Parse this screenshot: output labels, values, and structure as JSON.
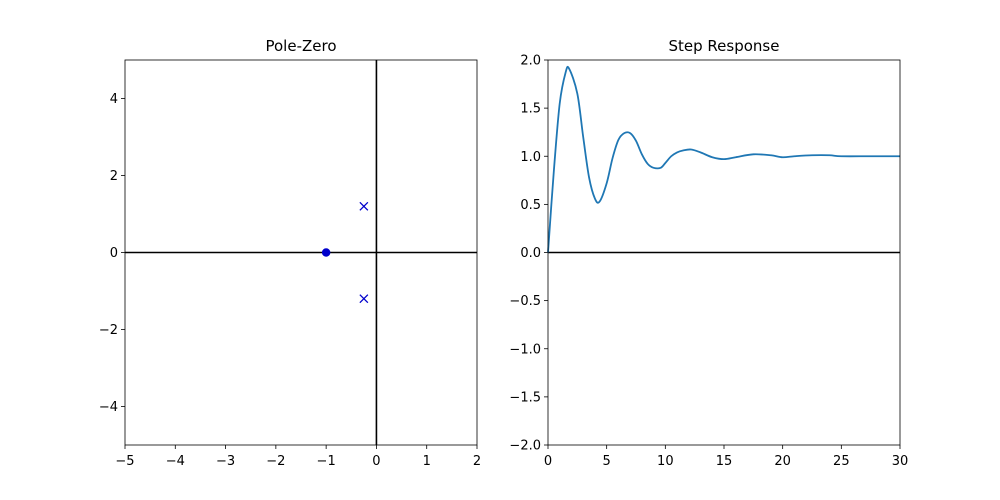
{
  "chart_data": [
    {
      "type": "scatter",
      "title": "Pole-Zero",
      "xlabel": "",
      "ylabel": "",
      "xlim": [
        -5,
        2
      ],
      "ylim": [
        -5,
        5
      ],
      "xticks": [
        -5,
        -4,
        -3,
        -2,
        -1,
        0,
        1,
        2
      ],
      "xtick_labels": [
        "−5",
        "−4",
        "−3",
        "−2",
        "−1",
        "0",
        "1",
        "2"
      ],
      "yticks": [
        -4,
        -2,
        0,
        2,
        4
      ],
      "ytick_labels": [
        "−4",
        "−2",
        "0",
        "2",
        "4"
      ],
      "grid": false,
      "axis_lines": {
        "x": 0,
        "y": 0
      },
      "poles": [
        {
          "re": -0.25,
          "im": 1.2
        },
        {
          "re": -0.25,
          "im": -1.2
        }
      ],
      "zeros": [
        {
          "re": -1.0,
          "im": 0.0
        }
      ],
      "colors": {
        "marker": "#0000cc",
        "axis": "#000000"
      }
    },
    {
      "type": "line",
      "title": "Step Response",
      "xlabel": "",
      "ylabel": "",
      "xlim": [
        0,
        30
      ],
      "ylim": [
        -2,
        2
      ],
      "xticks": [
        0,
        5,
        10,
        15,
        20,
        25,
        30
      ],
      "xtick_labels": [
        "0",
        "5",
        "10",
        "15",
        "20",
        "25",
        "30"
      ],
      "yticks": [
        -2,
        -1.5,
        -1,
        -0.5,
        0,
        0.5,
        1,
        1.5,
        2
      ],
      "ytick_labels": [
        "−2.0",
        "−1.5",
        "−1.0",
        "−0.5",
        "0.0",
        "0.5",
        "1.0",
        "1.5",
        "2.0"
      ],
      "grid": false,
      "hline": 0,
      "series": [
        {
          "x": [
            0,
            0.5,
            1,
            1.5,
            1.8,
            2.5,
            3,
            3.5,
            4,
            4.4,
            5,
            5.5,
            6,
            6.5,
            7,
            7.5,
            8,
            8.5,
            9,
            9.6,
            10,
            10.5,
            11,
            11.5,
            12.2,
            13,
            14,
            15,
            16,
            17.5,
            19,
            20,
            21,
            22.5,
            24,
            25,
            27.5,
            30
          ],
          "y": [
            0.0,
            0.85,
            1.55,
            1.87,
            1.91,
            1.65,
            1.2,
            0.78,
            0.56,
            0.53,
            0.72,
            0.98,
            1.17,
            1.24,
            1.24,
            1.16,
            1.02,
            0.92,
            0.88,
            0.88,
            0.93,
            1.0,
            1.04,
            1.06,
            1.07,
            1.04,
            0.99,
            0.97,
            0.99,
            1.02,
            1.01,
            0.99,
            1.0,
            1.01,
            1.01,
            1.0,
            1.0,
            1.0
          ]
        }
      ],
      "colors": {
        "line": "#1f77b4",
        "axis": "#000000"
      }
    }
  ]
}
